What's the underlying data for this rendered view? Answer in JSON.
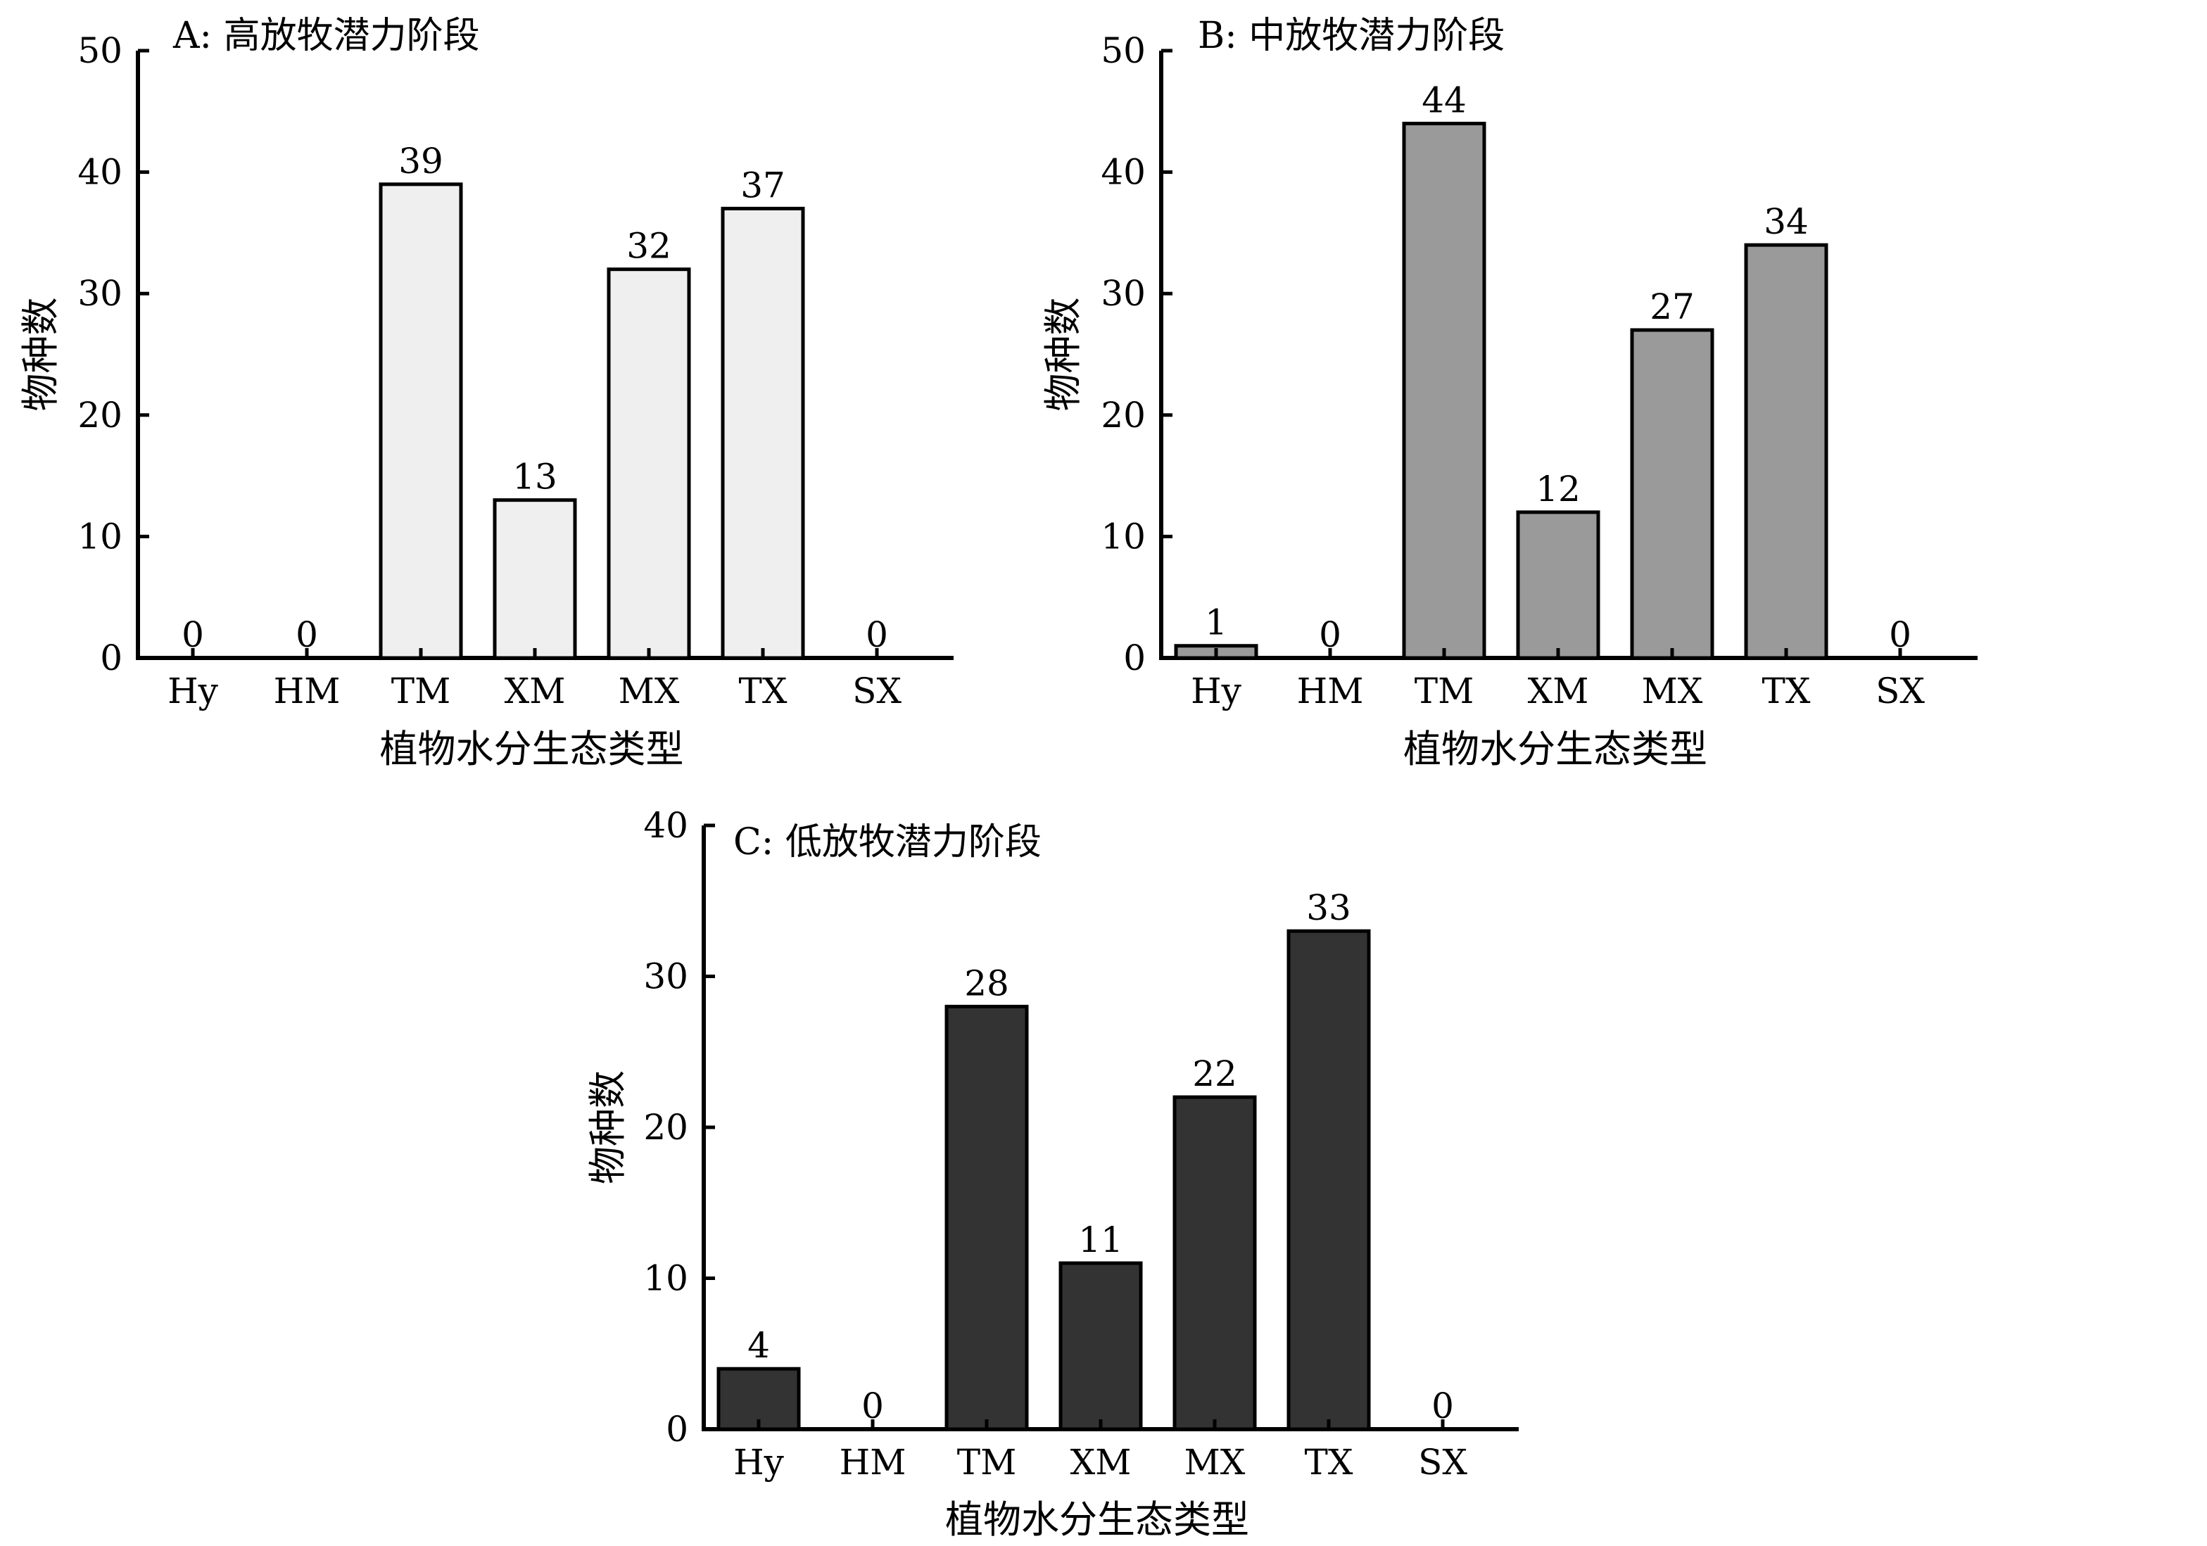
{
  "chart_data": [
    {
      "type": "bar",
      "title": "A: 高放牧潜力阶段",
      "xlabel": "植物水分生态类型",
      "ylabel": "物种数",
      "categories": [
        "Hy",
        "HM",
        "TM",
        "XM",
        "MX",
        "TX",
        "SX"
      ],
      "values": [
        0,
        0,
        39,
        13,
        32,
        37,
        0
      ],
      "ylim": [
        0,
        50
      ],
      "yticks": [
        0,
        10,
        20,
        30,
        40,
        50
      ],
      "bar_color": "#efefef",
      "grid": false,
      "legend": "none"
    },
    {
      "type": "bar",
      "title": "B: 中放牧潜力阶段",
      "xlabel": "植物水分生态类型",
      "ylabel": "物种数",
      "categories": [
        "Hy",
        "HM",
        "TM",
        "XM",
        "MX",
        "TX",
        "SX"
      ],
      "values": [
        1,
        0,
        44,
        12,
        27,
        34,
        0
      ],
      "ylim": [
        0,
        50
      ],
      "yticks": [
        0,
        10,
        20,
        30,
        40,
        50
      ],
      "bar_color": "#9a9a9a",
      "grid": false,
      "legend": "none"
    },
    {
      "type": "bar",
      "title": "C: 低放牧潜力阶段",
      "xlabel": "植物水分生态类型",
      "ylabel": "物种数",
      "categories": [
        "Hy",
        "HM",
        "TM",
        "XM",
        "MX",
        "TX",
        "SX"
      ],
      "values": [
        4,
        0,
        28,
        11,
        22,
        33,
        0
      ],
      "ylim": [
        0,
        40
      ],
      "yticks": [
        0,
        10,
        20,
        30,
        40
      ],
      "bar_color": "#333333",
      "grid": false,
      "legend": "none"
    }
  ]
}
